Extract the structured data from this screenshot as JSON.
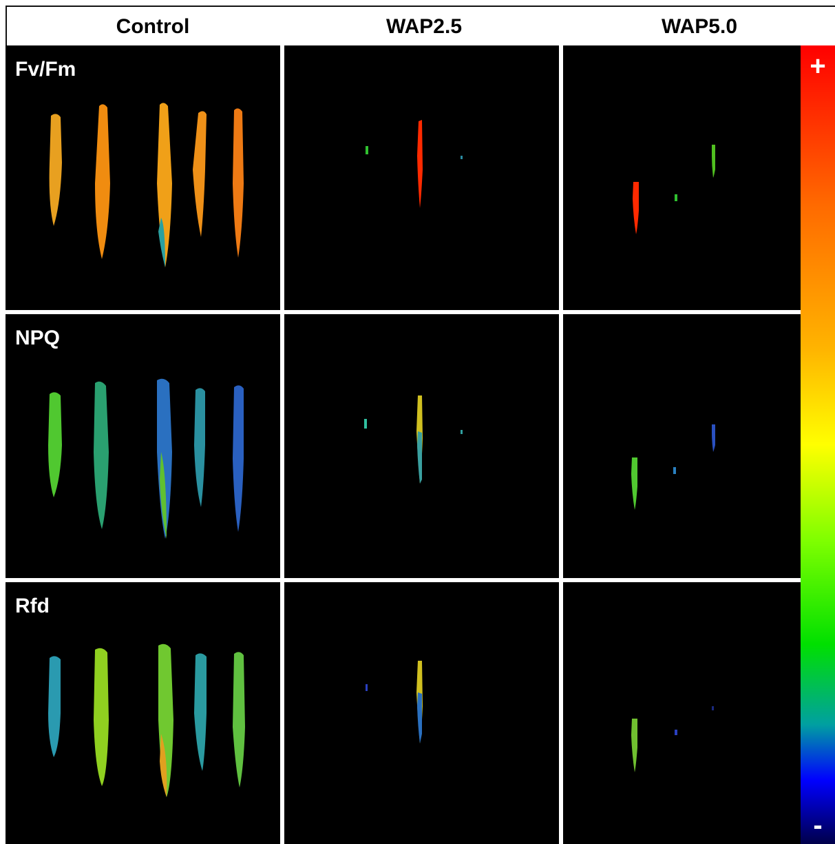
{
  "columns": [
    "Control",
    "WAP2.5",
    "WAP5.0"
  ],
  "rows": [
    "Fv/Fm",
    "NPQ",
    "Rfd"
  ],
  "colorbar": {
    "high_label": "+",
    "low_label": "-",
    "colors": [
      "#ff0000",
      "#ff6a00",
      "#ffb400",
      "#ffff00",
      "#7fff00",
      "#00e000",
      "#00a0a0",
      "#0000ff",
      "#00004a"
    ]
  },
  "panel_background": "#000000",
  "divider_color": "#ffffff"
}
